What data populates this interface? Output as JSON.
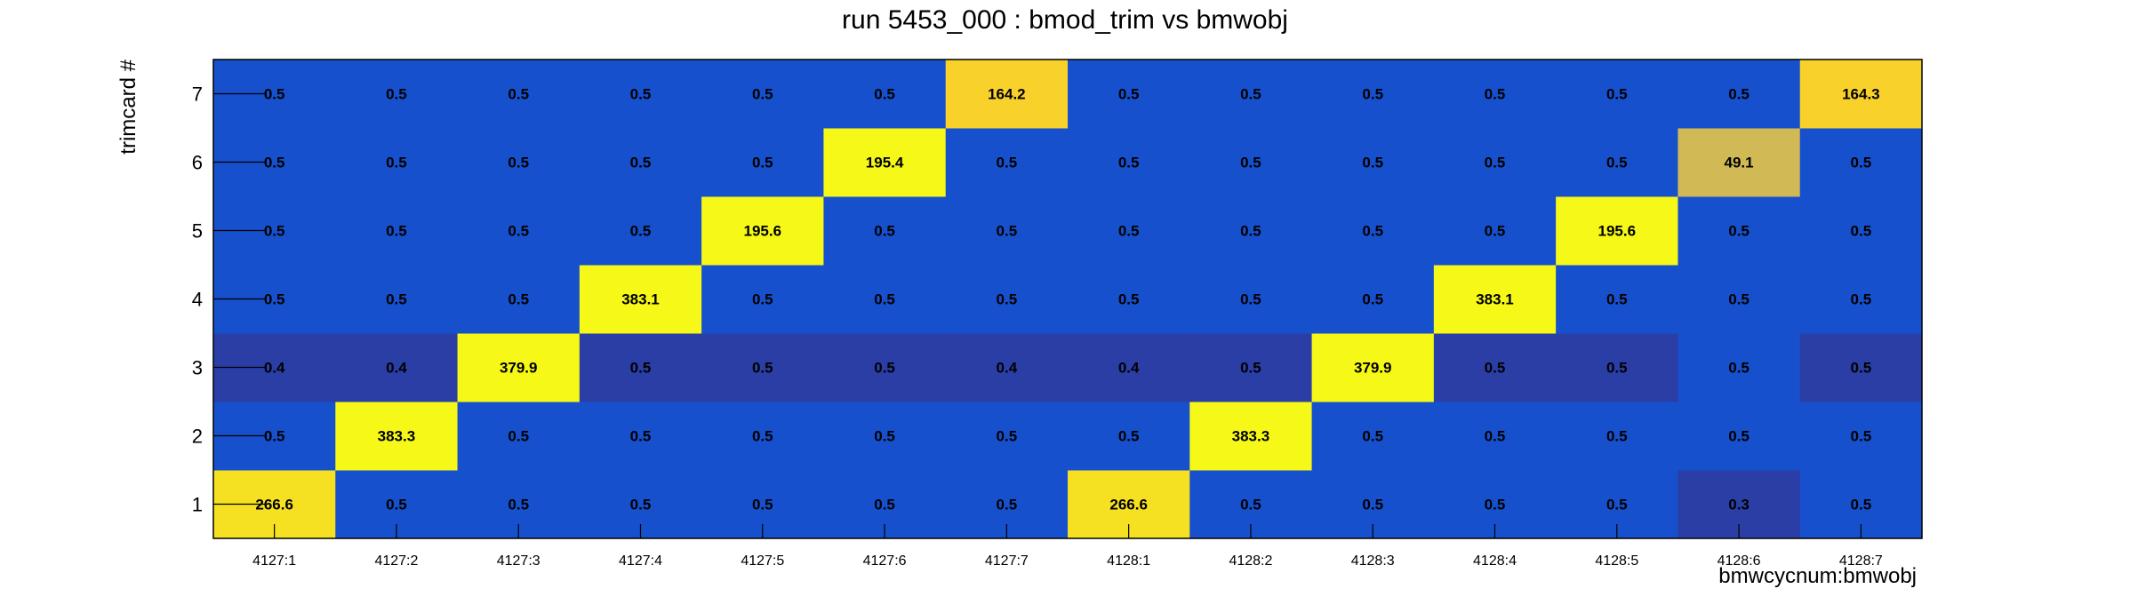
{
  "chart_data": {
    "type": "heatmap",
    "title": "run 5453_000 : bmod_trim vs bmwobj",
    "xlabel": "bmwcycnum:bmwobj",
    "ylabel": "trimcard #",
    "x_categories": [
      "4127:1",
      "4127:2",
      "4127:3",
      "4127:4",
      "4127:5",
      "4127:6",
      "4127:7",
      "4128:1",
      "4128:2",
      "4128:3",
      "4128:4",
      "4128:5",
      "4128:6",
      "4128:7"
    ],
    "y_categories": [
      "1",
      "2",
      "3",
      "4",
      "5",
      "6",
      "7"
    ],
    "values": [
      [
        "266.6",
        "0.5",
        "0.5",
        "0.5",
        "0.5",
        "0.5",
        "0.5",
        "266.6",
        "0.5",
        "0.5",
        "0.5",
        "0.5",
        "0.3",
        "0.5"
      ],
      [
        "0.5",
        "383.3",
        "0.5",
        "0.5",
        "0.5",
        "0.5",
        "0.5",
        "0.5",
        "383.3",
        "0.5",
        "0.5",
        "0.5",
        "0.5",
        "0.5"
      ],
      [
        "0.4",
        "0.4",
        "379.9",
        "0.5",
        "0.5",
        "0.5",
        "0.4",
        "0.4",
        "0.5",
        "379.9",
        "0.5",
        "0.5",
        "0.5",
        "0.5"
      ],
      [
        "0.5",
        "0.5",
        "0.5",
        "383.1",
        "0.5",
        "0.5",
        "0.5",
        "0.5",
        "0.5",
        "0.5",
        "383.1",
        "0.5",
        "0.5",
        "0.5"
      ],
      [
        "0.5",
        "0.5",
        "0.5",
        "0.5",
        "195.6",
        "0.5",
        "0.5",
        "0.5",
        "0.5",
        "0.5",
        "0.5",
        "195.6",
        "0.5",
        "0.5"
      ],
      [
        "0.5",
        "0.5",
        "0.5",
        "0.5",
        "0.5",
        "195.4",
        "0.5",
        "0.5",
        "0.5",
        "0.5",
        "0.5",
        "0.5",
        "49.1",
        "0.5"
      ],
      [
        "0.5",
        "0.5",
        "0.5",
        "0.5",
        "0.5",
        "0.5",
        "164.2",
        "0.5",
        "0.5",
        "0.5",
        "0.5",
        "0.5",
        "0.5",
        "164.3"
      ]
    ],
    "colors": {
      "blue": "#1750cc",
      "dark_blue": "#2a3ea6",
      "yellow": "#f6f817",
      "yellow_deep": "#f5e121",
      "yellow_orange": "#f8d22b",
      "tan": "#d1b956"
    },
    "cell_colors": [
      [
        "yellow_deep",
        "blue",
        "blue",
        "blue",
        "blue",
        "blue",
        "blue",
        "yellow_deep",
        "blue",
        "blue",
        "blue",
        "blue",
        "dark_blue",
        "blue"
      ],
      [
        "blue",
        "yellow",
        "blue",
        "blue",
        "blue",
        "blue",
        "blue",
        "blue",
        "yellow",
        "blue",
        "blue",
        "blue",
        "blue",
        "blue"
      ],
      [
        "dark_blue",
        "dark_blue",
        "yellow",
        "dark_blue",
        "dark_blue",
        "dark_blue",
        "dark_blue",
        "dark_blue",
        "dark_blue",
        "yellow",
        "dark_blue",
        "dark_blue",
        "blue",
        "dark_blue"
      ],
      [
        "blue",
        "blue",
        "blue",
        "yellow",
        "blue",
        "blue",
        "blue",
        "blue",
        "blue",
        "blue",
        "yellow",
        "blue",
        "blue",
        "blue"
      ],
      [
        "blue",
        "blue",
        "blue",
        "blue",
        "yellow",
        "blue",
        "blue",
        "blue",
        "blue",
        "blue",
        "blue",
        "yellow",
        "blue",
        "blue"
      ],
      [
        "blue",
        "blue",
        "blue",
        "blue",
        "blue",
        "yellow",
        "blue",
        "blue",
        "blue",
        "blue",
        "blue",
        "blue",
        "tan",
        "blue"
      ],
      [
        "blue",
        "blue",
        "blue",
        "blue",
        "blue",
        "blue",
        "yellow_orange",
        "blue",
        "blue",
        "blue",
        "blue",
        "blue",
        "blue",
        "yellow_orange"
      ]
    ]
  }
}
